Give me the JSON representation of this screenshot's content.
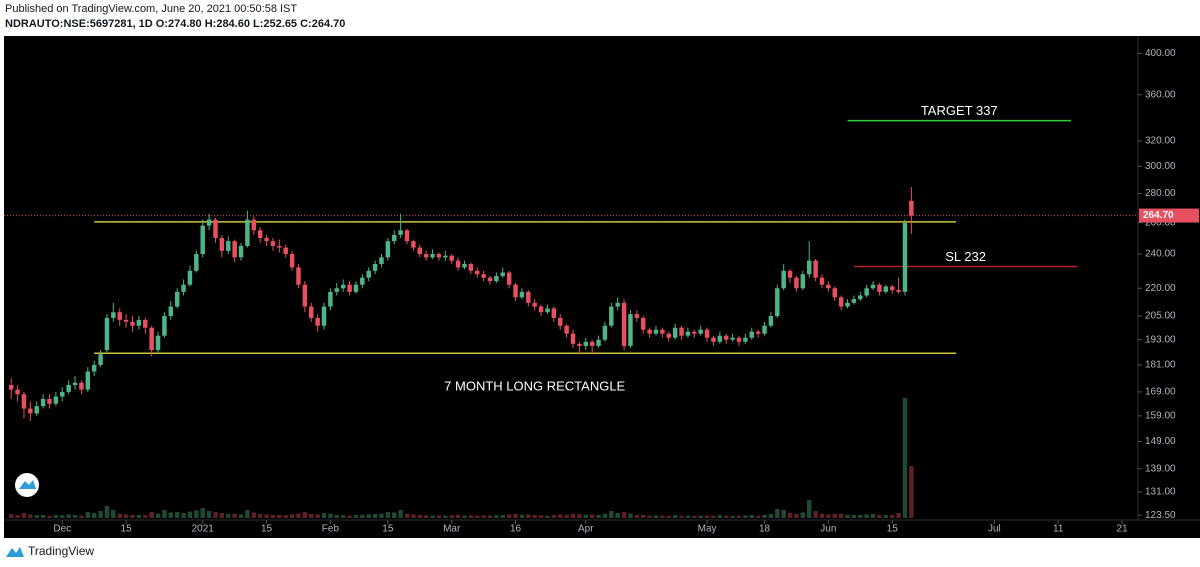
{
  "header": {
    "published": "Published on TradingView.com, June 20, 2021 00:50:58 IST",
    "symbol": "NDRAUTO:NSE:5697281, 1D O:274.80 H:284.60 L:252.65 C:264.70"
  },
  "footer": {
    "brand": "TradingView"
  },
  "chart_data": {
    "type": "candlestick",
    "log_scale": true,
    "grid": false,
    "up_color": "#4fb488",
    "down_color": "#e8505f",
    "xlim": [
      -0.5,
      176.5
    ],
    "xticks": [
      {
        "value": 8,
        "label": "Dec"
      },
      {
        "value": 18,
        "label": "15"
      },
      {
        "value": 30,
        "label": "2021"
      },
      {
        "value": 40,
        "label": "15"
      },
      {
        "value": 50,
        "label": "Feb"
      },
      {
        "value": 59,
        "label": "15"
      },
      {
        "value": 69,
        "label": "Mar"
      },
      {
        "value": 79,
        "label": "16"
      },
      {
        "value": 90,
        "label": "Apr"
      },
      {
        "value": 109,
        "label": "May"
      },
      {
        "value": 118,
        "label": "18"
      },
      {
        "value": 128,
        "label": "Jun"
      },
      {
        "value": 138,
        "label": "15"
      },
      {
        "value": 154,
        "label": "Jul"
      },
      {
        "value": 164,
        "label": "11"
      },
      {
        "value": 174,
        "label": "21"
      }
    ],
    "ylim": [
      122,
      418
    ],
    "yticks": [
      {
        "value": 123.5,
        "label": "123.50"
      },
      {
        "value": 131,
        "label": "131.00"
      },
      {
        "value": 139,
        "label": "139.00"
      },
      {
        "value": 149,
        "label": "149.00"
      },
      {
        "value": 159,
        "label": "159.00"
      },
      {
        "value": 169,
        "label": "169.00"
      },
      {
        "value": 181,
        "label": "181.00"
      },
      {
        "value": 193,
        "label": "193.00"
      },
      {
        "value": 205,
        "label": "205.00"
      },
      {
        "value": 220,
        "label": "220.00"
      },
      {
        "value": 240,
        "label": "240.00"
      },
      {
        "value": 260,
        "label": "260.00"
      },
      {
        "value": 280,
        "label": "280.00"
      },
      {
        "value": 300,
        "label": "300.00"
      },
      {
        "value": 320,
        "label": "320.00"
      },
      {
        "value": 360,
        "label": "360.00"
      },
      {
        "value": 400,
        "label": "400.00"
      }
    ],
    "price_line": {
      "value": 264.7,
      "label": "264.70",
      "color": "#e8505f"
    },
    "levels": [
      {
        "label": "TARGET 337",
        "value": 337,
        "x": [
          131,
          166
        ],
        "color": "#2fd040"
      },
      {
        "label": "SL 232",
        "value": 232.5,
        "x": [
          132,
          167
        ],
        "color": "#b52430"
      },
      {
        "value": 260.5,
        "x": [
          13,
          148
        ],
        "color": "#c9c43a"
      },
      {
        "value": 186.5,
        "x": [
          13,
          148
        ],
        "color": "#c9c43a"
      }
    ],
    "annotations": [
      {
        "text": "7 MONTH LONG RECTANGLE",
        "x": 82,
        "value": 171
      }
    ],
    "vlim": [
      0,
      700
    ],
    "candles": [
      [
        172,
        175,
        166,
        170
      ],
      [
        170,
        172,
        165,
        168
      ],
      [
        168,
        169,
        158,
        162
      ],
      [
        162,
        165,
        157,
        160
      ],
      [
        160,
        165,
        159,
        163
      ],
      [
        163,
        168,
        162,
        166
      ],
      [
        166,
        168,
        162,
        164
      ],
      [
        164,
        169,
        163,
        167
      ],
      [
        167,
        171,
        165,
        169
      ],
      [
        169,
        174,
        168,
        172
      ],
      [
        172,
        176,
        170,
        173
      ],
      [
        173,
        174,
        168,
        170
      ],
      [
        170,
        180,
        169,
        178
      ],
      [
        178,
        183,
        176,
        181
      ],
      [
        181,
        188,
        180,
        186
      ],
      [
        188,
        206,
        187,
        204
      ],
      [
        204,
        212,
        202,
        207
      ],
      [
        207,
        209,
        200,
        203
      ],
      [
        203,
        206,
        199,
        202
      ],
      [
        202,
        205,
        197,
        200
      ],
      [
        200,
        205,
        198,
        203
      ],
      [
        203,
        204,
        196,
        199
      ],
      [
        199,
        200,
        185,
        188
      ],
      [
        188,
        197,
        187,
        195
      ],
      [
        195,
        207,
        194,
        205
      ],
      [
        205,
        213,
        203,
        210
      ],
      [
        210,
        220,
        209,
        218
      ],
      [
        218,
        225,
        216,
        222
      ],
      [
        222,
        233,
        221,
        230
      ],
      [
        230,
        242,
        229,
        240
      ],
      [
        240,
        262,
        238,
        258
      ],
      [
        258,
        266,
        255,
        262
      ],
      [
        262,
        263,
        247,
        250
      ],
      [
        250,
        252,
        238,
        242
      ],
      [
        242,
        251,
        240,
        248
      ],
      [
        248,
        249,
        235,
        238
      ],
      [
        238,
        247,
        236,
        245
      ],
      [
        245,
        268,
        244,
        262
      ],
      [
        262,
        264,
        252,
        255
      ],
      [
        255,
        257,
        247,
        250
      ],
      [
        250,
        252,
        245,
        248
      ],
      [
        248,
        250,
        242,
        245
      ],
      [
        245,
        249,
        241,
        244
      ],
      [
        244,
        246,
        238,
        240
      ],
      [
        240,
        242,
        230,
        232
      ],
      [
        232,
        234,
        220,
        222
      ],
      [
        222,
        224,
        207,
        210
      ],
      [
        210,
        212,
        202,
        204
      ],
      [
        204,
        206,
        197,
        200
      ],
      [
        200,
        212,
        198,
        210
      ],
      [
        210,
        220,
        208,
        218
      ],
      [
        218,
        223,
        216,
        220
      ],
      [
        220,
        225,
        218,
        222
      ],
      [
        222,
        224,
        216,
        218
      ],
      [
        218,
        224,
        217,
        222
      ],
      [
        222,
        228,
        220,
        226
      ],
      [
        226,
        232,
        224,
        230
      ],
      [
        230,
        236,
        228,
        234
      ],
      [
        234,
        240,
        232,
        238
      ],
      [
        238,
        250,
        236,
        248
      ],
      [
        248,
        255,
        246,
        252
      ],
      [
        252,
        266,
        250,
        255
      ],
      [
        255,
        256,
        246,
        248
      ],
      [
        248,
        249,
        242,
        244
      ],
      [
        244,
        246,
        238,
        240
      ],
      [
        240,
        242,
        236,
        238
      ],
      [
        238,
        243,
        237,
        240
      ],
      [
        240,
        241,
        236,
        238
      ],
      [
        238,
        242,
        236,
        239
      ],
      [
        239,
        240,
        234,
        236
      ],
      [
        236,
        238,
        230,
        232
      ],
      [
        232,
        236,
        231,
        234
      ],
      [
        234,
        235,
        228,
        230
      ],
      [
        230,
        232,
        226,
        228
      ],
      [
        228,
        230,
        224,
        226
      ],
      [
        226,
        227,
        222,
        224
      ],
      [
        224,
        229,
        223,
        227
      ],
      [
        227,
        232,
        226,
        229
      ],
      [
        229,
        230,
        220,
        222
      ],
      [
        222,
        223,
        213,
        215
      ],
      [
        215,
        220,
        214,
        218
      ],
      [
        218,
        219,
        210,
        212
      ],
      [
        212,
        214,
        208,
        210
      ],
      [
        210,
        211,
        205,
        207
      ],
      [
        207,
        211,
        206,
        209
      ],
      [
        209,
        210,
        202,
        204
      ],
      [
        204,
        206,
        198,
        200
      ],
      [
        200,
        201,
        194,
        196
      ],
      [
        196,
        198,
        189,
        191
      ],
      [
        191,
        192,
        186,
        190
      ],
      [
        190,
        194,
        188,
        192
      ],
      [
        192,
        193,
        186,
        190
      ],
      [
        190,
        195,
        189,
        193
      ],
      [
        193,
        202,
        192,
        200
      ],
      [
        200,
        212,
        199,
        210
      ],
      [
        210,
        215,
        208,
        212
      ],
      [
        212,
        214,
        188,
        190
      ],
      [
        190,
        208,
        189,
        206
      ],
      [
        206,
        208,
        202,
        204
      ],
      [
        204,
        205,
        196,
        198
      ],
      [
        198,
        199,
        194,
        196
      ],
      [
        196,
        200,
        195,
        198
      ],
      [
        198,
        199,
        194,
        196
      ],
      [
        196,
        197,
        192,
        194
      ],
      [
        194,
        201,
        193,
        199
      ],
      [
        199,
        200,
        193,
        195
      ],
      [
        195,
        199,
        194,
        197
      ],
      [
        197,
        198,
        194,
        196
      ],
      [
        196,
        200,
        195,
        198
      ],
      [
        198,
        199,
        192,
        194
      ],
      [
        194,
        195,
        190,
        192
      ],
      [
        192,
        197,
        191,
        195
      ],
      [
        195,
        196,
        191,
        193
      ],
      [
        193,
        196,
        192,
        194
      ],
      [
        194,
        195,
        190,
        192
      ],
      [
        192,
        196,
        191,
        194
      ],
      [
        194,
        199,
        193,
        197
      ],
      [
        197,
        198,
        194,
        196
      ],
      [
        196,
        202,
        195,
        200
      ],
      [
        200,
        207,
        199,
        205
      ],
      [
        205,
        222,
        204,
        220
      ],
      [
        220,
        234,
        219,
        230
      ],
      [
        230,
        231,
        223,
        226
      ],
      [
        226,
        227,
        218,
        220
      ],
      [
        220,
        230,
        219,
        228
      ],
      [
        228,
        248,
        226,
        236
      ],
      [
        236,
        237,
        224,
        226
      ],
      [
        226,
        228,
        220,
        222
      ],
      [
        222,
        224,
        218,
        220
      ],
      [
        220,
        221,
        213,
        215
      ],
      [
        215,
        216,
        208,
        210
      ],
      [
        210,
        214,
        209,
        212
      ],
      [
        212,
        216,
        211,
        214
      ],
      [
        214,
        218,
        213,
        216
      ],
      [
        216,
        222,
        215,
        220
      ],
      [
        220,
        224,
        219,
        222
      ],
      [
        222,
        223,
        216,
        218
      ],
      [
        218,
        222,
        217,
        221
      ],
      [
        221,
        222,
        217,
        219
      ],
      [
        219,
        226,
        217,
        218
      ],
      [
        218,
        262,
        216,
        259.8
      ],
      [
        274.8,
        284.6,
        252.65,
        264.7
      ]
    ],
    "volume": [
      20,
      15,
      25,
      18,
      14,
      16,
      12,
      15,
      14,
      18,
      16,
      12,
      30,
      25,
      35,
      60,
      40,
      22,
      18,
      15,
      16,
      14,
      30,
      22,
      40,
      28,
      30,
      25,
      32,
      38,
      50,
      35,
      30,
      25,
      20,
      22,
      18,
      40,
      28,
      20,
      18,
      16,
      15,
      14,
      18,
      22,
      30,
      20,
      18,
      25,
      22,
      16,
      14,
      12,
      15,
      16,
      18,
      20,
      22,
      30,
      28,
      40,
      22,
      18,
      15,
      14,
      12,
      13,
      12,
      14,
      16,
      12,
      14,
      12,
      13,
      12,
      14,
      15,
      18,
      20,
      16,
      18,
      15,
      14,
      12,
      15,
      18,
      16,
      22,
      20,
      16,
      18,
      15,
      22,
      35,
      25,
      30,
      22,
      16,
      15,
      12,
      13,
      12,
      11,
      14,
      12,
      12,
      11,
      12,
      13,
      12,
      14,
      12,
      11,
      12,
      13,
      15,
      12,
      16,
      20,
      45,
      40,
      25,
      20,
      28,
      90,
      35,
      22,
      18,
      20,
      22,
      16,
      15,
      16,
      18,
      20,
      16,
      15,
      14,
      25,
      600,
      260
    ]
  }
}
